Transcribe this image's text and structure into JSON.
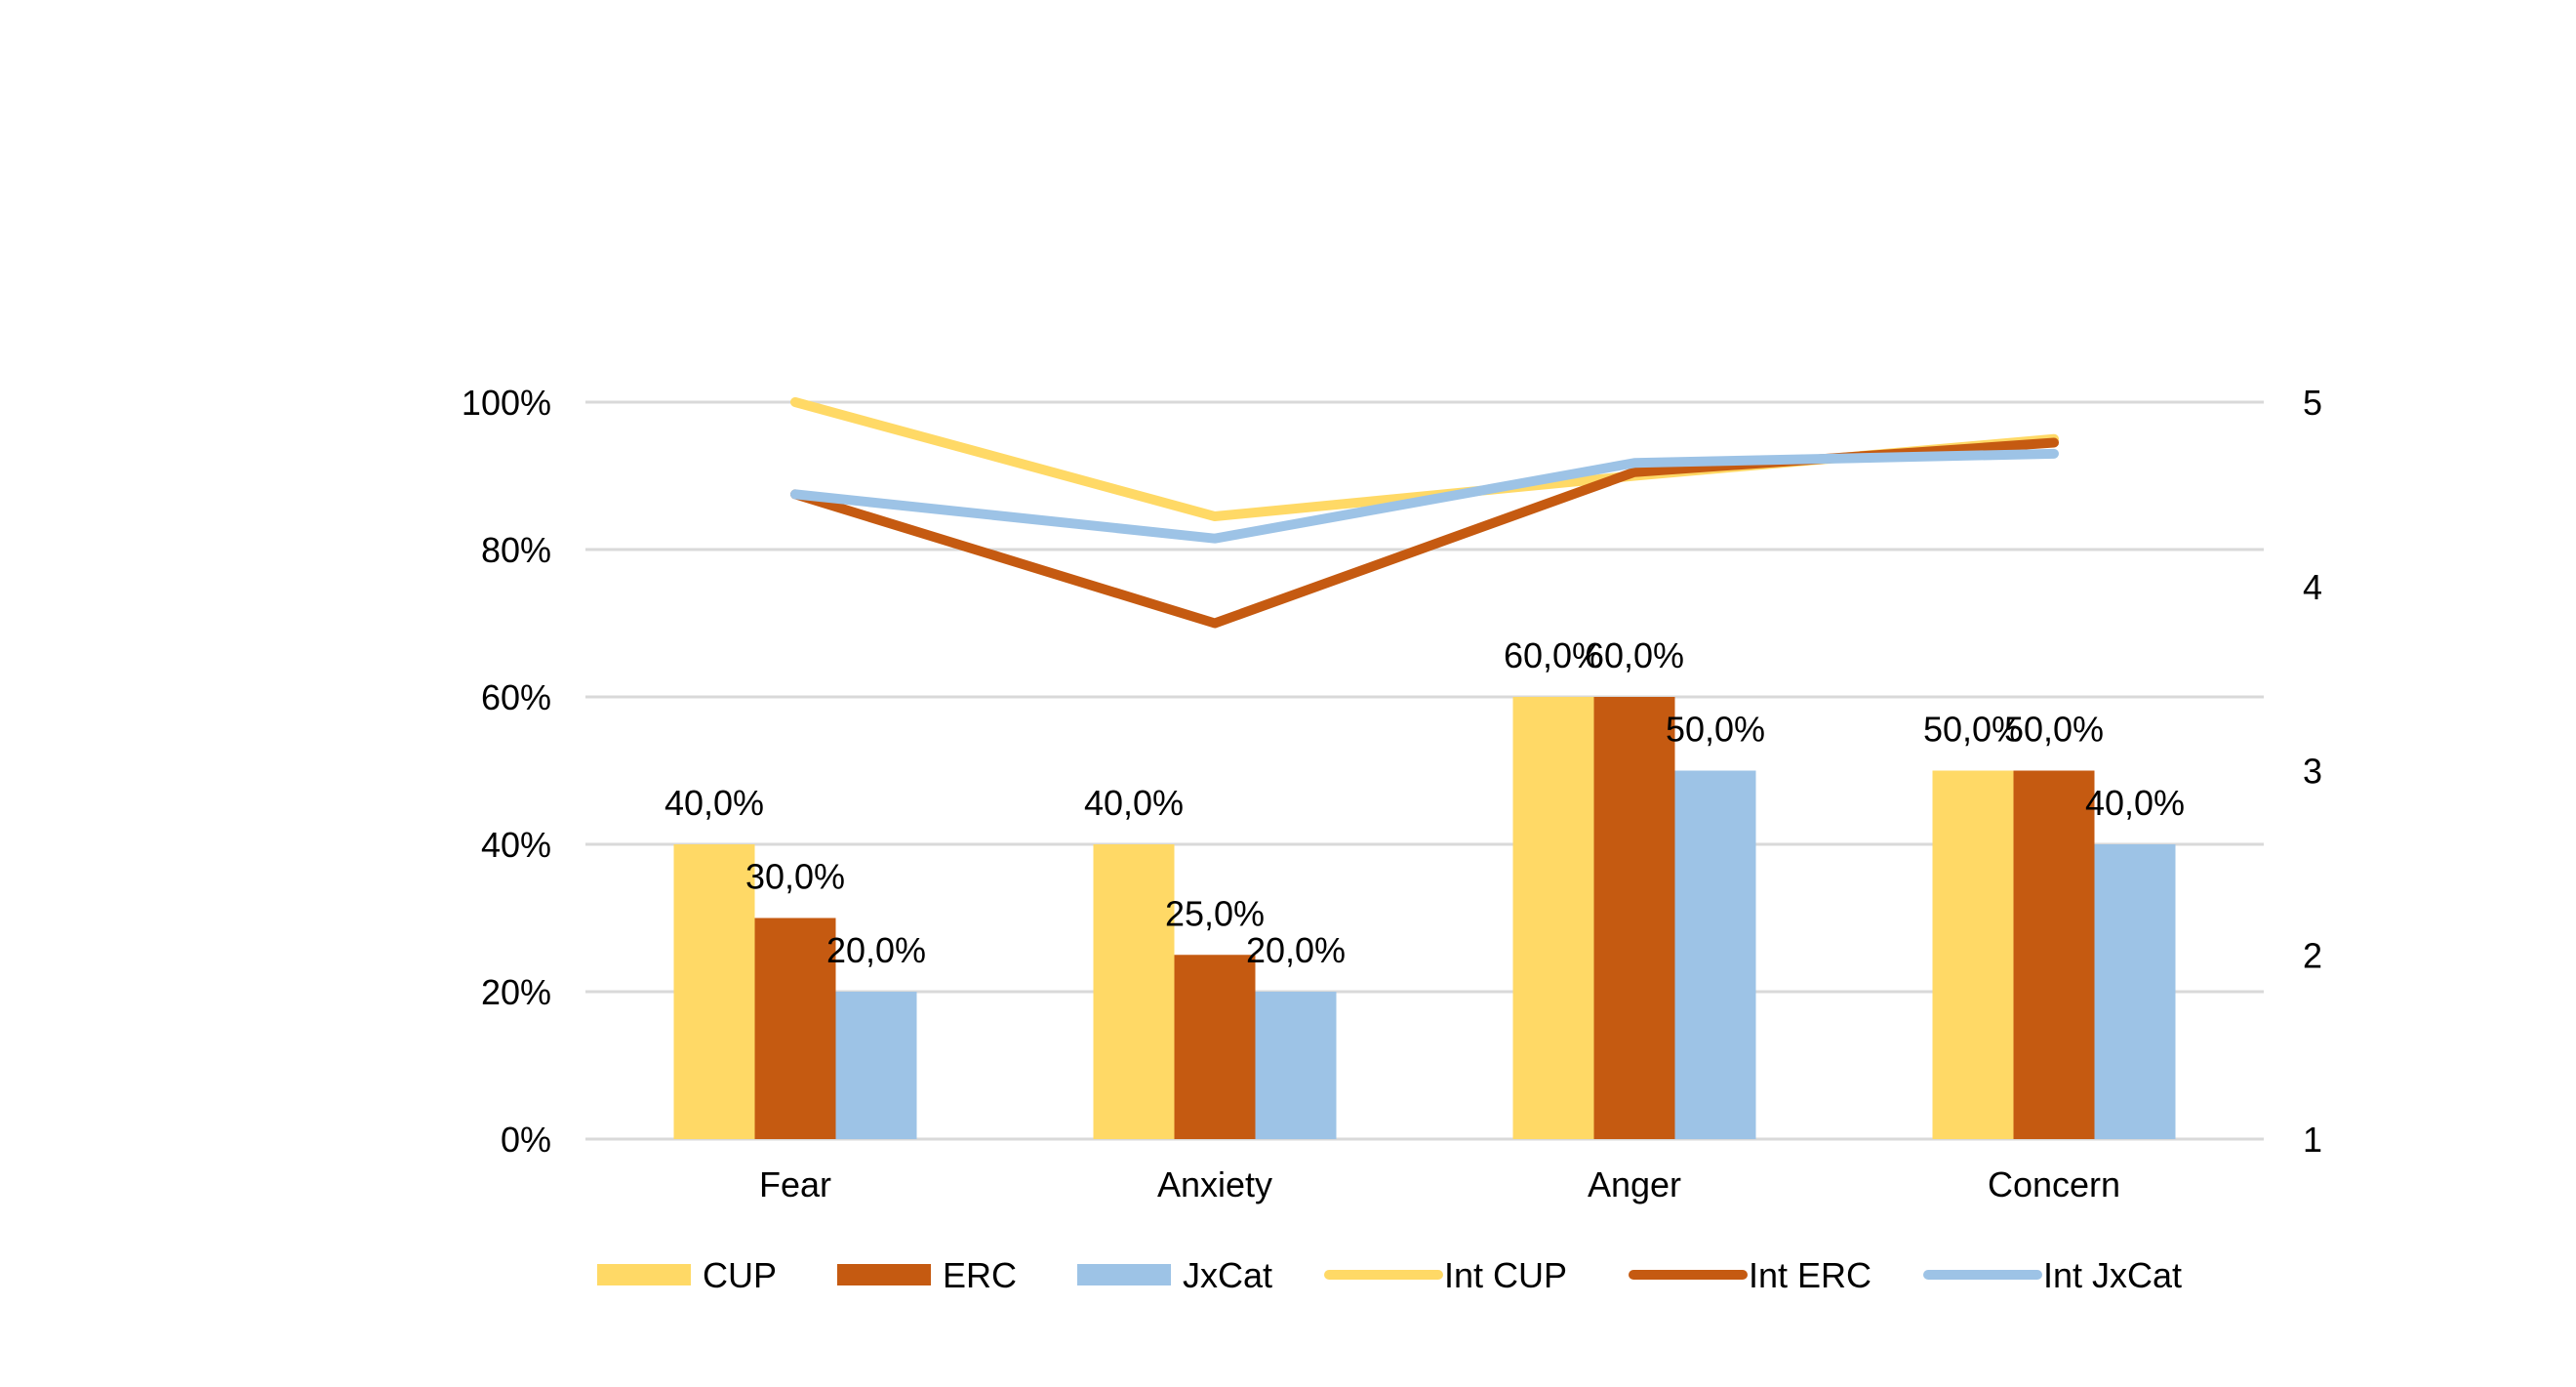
{
  "chart_data": {
    "type": "bar",
    "categories": [
      "Fear",
      "Anxiety",
      "Anger",
      "Concern"
    ],
    "bar_series": [
      {
        "name": "CUP",
        "values": [
          40,
          40,
          60,
          50
        ],
        "labels": [
          "40,0%",
          "40,0%",
          "60,0%",
          "50,0%"
        ]
      },
      {
        "name": "ERC",
        "values": [
          30,
          25,
          60,
          50
        ],
        "labels": [
          "30,0%",
          "25,0%",
          "60,0%",
          "50,0%"
        ]
      },
      {
        "name": "JxCat",
        "values": [
          20,
          20,
          50,
          40
        ],
        "labels": [
          "20,0%",
          "20,0%",
          "50,0%",
          "40,0%"
        ]
      }
    ],
    "line_series": [
      {
        "name": "Int CUP",
        "values": [
          5.0,
          4.38,
          4.6,
          4.8
        ]
      },
      {
        "name": "Int ERC",
        "values": [
          4.5,
          3.8,
          4.62,
          4.78
        ]
      },
      {
        "name": "Int JxCat",
        "values": [
          4.5,
          4.26,
          4.67,
          4.72
        ]
      }
    ],
    "y_left": {
      "min": 0,
      "max": 100,
      "ticks": [
        0,
        20,
        40,
        60,
        80,
        100
      ],
      "tick_labels": [
        "0%",
        "20%",
        "40%",
        "60%",
        "80%",
        "100%"
      ]
    },
    "y_right": {
      "min": 1,
      "max": 5,
      "ticks": [
        1,
        2,
        3,
        4,
        5
      ],
      "tick_labels": [
        "1",
        "2",
        "3",
        "4",
        "5"
      ]
    },
    "title": "",
    "xlabel": "",
    "ylabel": "",
    "grid": true,
    "legend_position": "bottom",
    "colors": {
      "CUP": "#FFD966",
      "ERC": "#C55A11",
      "JxCat": "#9DC3E6",
      "grid": "#D9D9D9"
    }
  }
}
